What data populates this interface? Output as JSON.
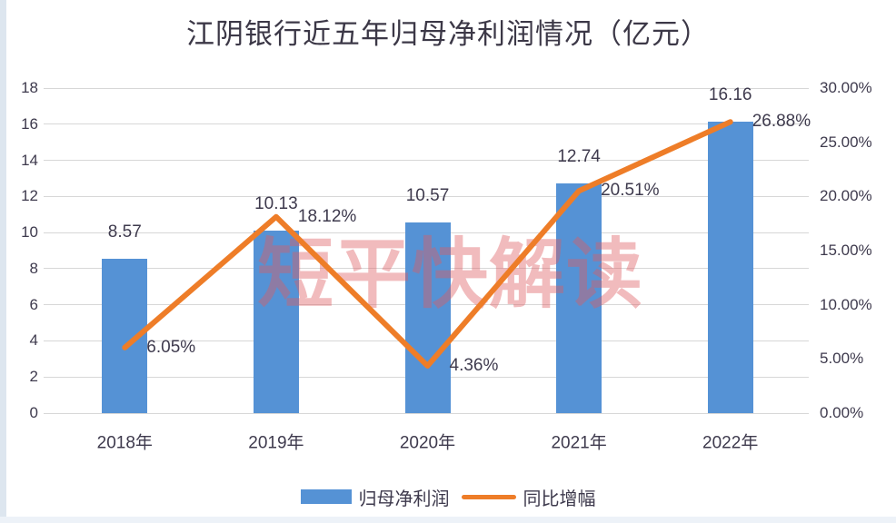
{
  "title": "江阴银行近五年归母净利润情况（亿元）",
  "watermark": "短平快解读",
  "legend": [
    {
      "label": "归母净利润",
      "type": "bar",
      "color": "#5592d5"
    },
    {
      "label": "同比增幅",
      "type": "line",
      "color": "#ee7d28"
    }
  ],
  "colors": {
    "bar": "#5592d5",
    "line": "#ee7d28",
    "text": "#3e3a4d",
    "gridline": "#d7d7d7",
    "watermark": "rgba(221,92,97,0.42)"
  },
  "chart_data": {
    "type": "combo",
    "categories": [
      "2018年",
      "2019年",
      "2020年",
      "2021年",
      "2022年"
    ],
    "series": [
      {
        "name": "归母净利润",
        "type": "bar",
        "axis": "left",
        "color": "#5592d5",
        "values": [
          8.57,
          10.13,
          10.57,
          12.74,
          16.16
        ],
        "labels": [
          "8.57",
          "10.13",
          "10.57",
          "12.74",
          "16.16"
        ]
      },
      {
        "name": "同比增幅",
        "type": "line",
        "axis": "right",
        "color": "#ee7d28",
        "values": [
          6.05,
          18.12,
          4.36,
          20.51,
          26.88
        ],
        "labels": [
          "6.05%",
          "18.12%",
          "4.36%",
          "20.51%",
          "26.88%"
        ]
      }
    ],
    "left_axis": {
      "min": 0,
      "max": 18,
      "step": 2,
      "ticks": [
        "0",
        "2",
        "4",
        "6",
        "8",
        "10",
        "12",
        "14",
        "16",
        "18"
      ]
    },
    "right_axis": {
      "min": 0,
      "max": 30,
      "step": 5,
      "ticks": [
        "0.00%",
        "5.00%",
        "10.00%",
        "15.00%",
        "20.00%",
        "25.00%",
        "30.00%"
      ]
    },
    "grid": true,
    "legend_position": "bottom",
    "title": "江阴银行近五年归母净利润情况（亿元）"
  }
}
